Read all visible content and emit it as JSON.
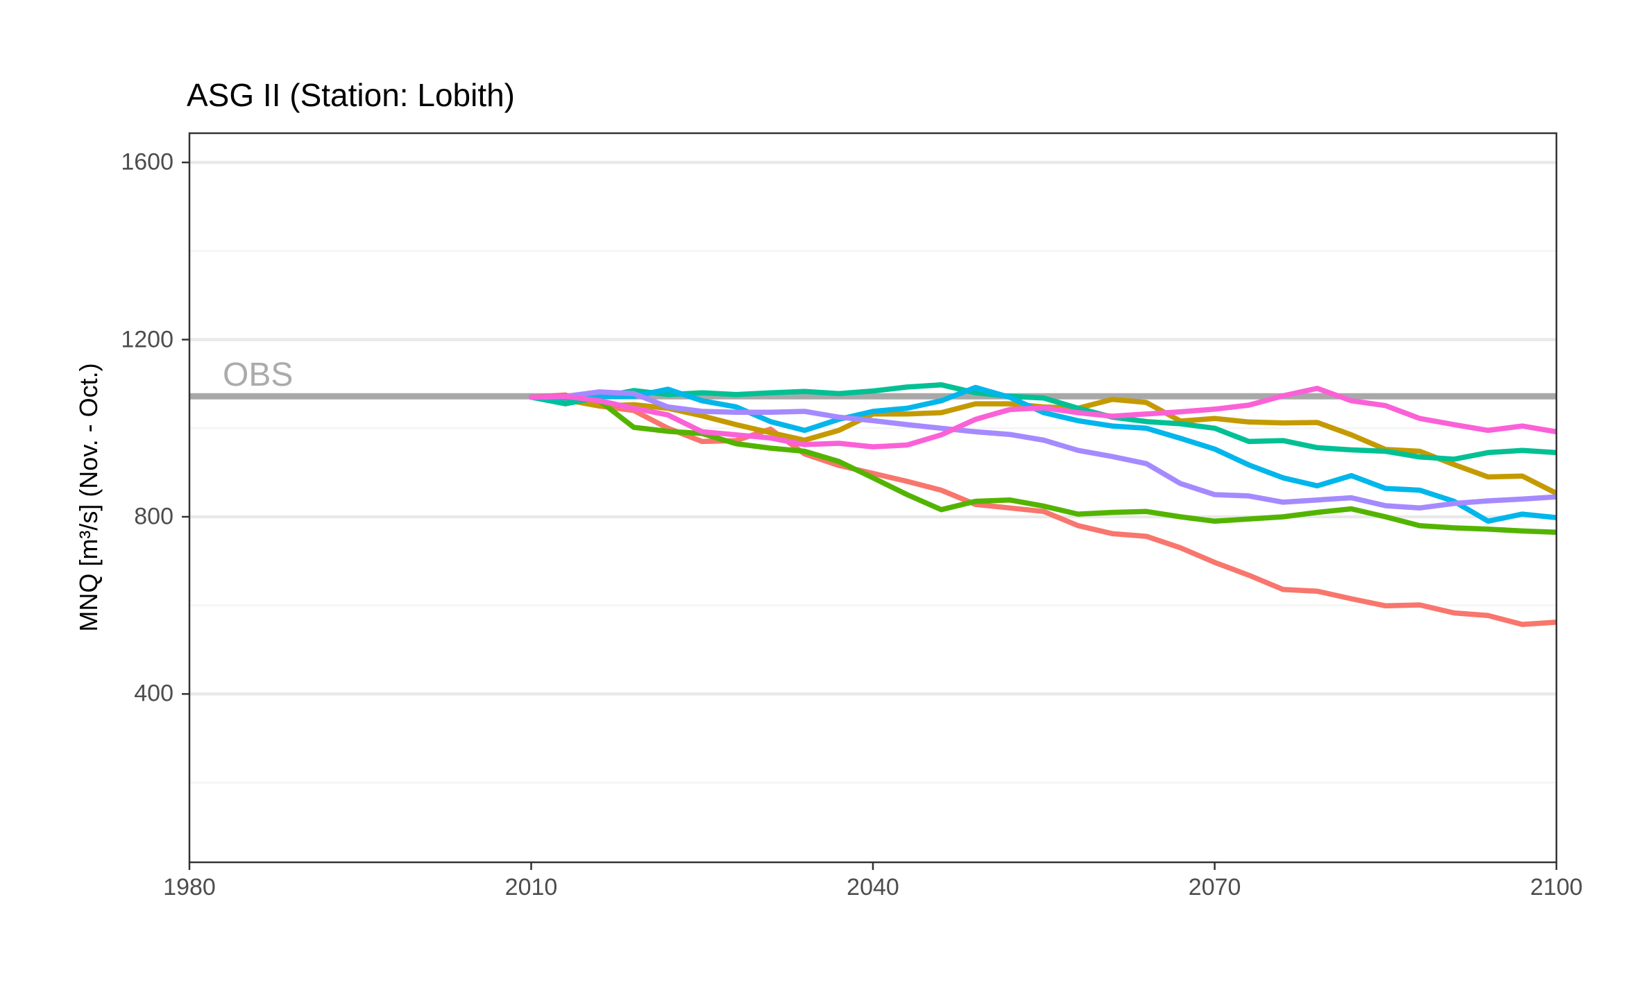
{
  "title": "ASG II (Station: Lobith)",
  "y_axis": {
    "title": "MNQ [m³/s] (Nov. - Oct.)",
    "ticks": [
      {
        "label": "400",
        "value": 400
      },
      {
        "label": "800",
        "value": 800
      },
      {
        "label": "1200",
        "value": 1200
      },
      {
        "label": "1600",
        "value": 1600
      }
    ]
  },
  "x_axis": {
    "ticks": [
      {
        "label": "1980",
        "value": 1980
      },
      {
        "label": "2010",
        "value": 2010
      },
      {
        "label": "2040",
        "value": 2040
      },
      {
        "label": "2070",
        "value": 2070
      },
      {
        "label": "2100",
        "value": 2100
      }
    ]
  },
  "chart_data": {
    "type": "line",
    "title": "ASG II (Station: Lobith)",
    "xlabel": "",
    "ylabel": "MNQ [m³/s] (Nov. - Oct.)",
    "xlim": [
      1980,
      2100
    ],
    "ylim": [
      20,
      1666
    ],
    "grid": "horizontal-only",
    "legend_position": "none",
    "gridlines": {
      "major": [
        400,
        800,
        1200,
        1600
      ],
      "minor": [
        200,
        600,
        1000,
        1400
      ]
    },
    "reference_line": {
      "label": "OBS",
      "value": 1072,
      "color": "#a8a8a8",
      "x_start": 1980,
      "x_end": 2100
    },
    "x": [
      2010,
      2013,
      2016,
      2019,
      2022,
      2025,
      2028,
      2031,
      2034,
      2037,
      2040,
      2043,
      2046,
      2049,
      2052,
      2055,
      2058,
      2061,
      2064,
      2067,
      2070,
      2073,
      2076,
      2079,
      2082,
      2085,
      2088,
      2091,
      2094,
      2097,
      2100
    ],
    "series": [
      {
        "name": "salmon",
        "color": "#F8766D",
        "values": [
          1070,
          1075,
          1050,
          1040,
          1000,
          970,
          972,
          998,
          942,
          916,
          898,
          880,
          860,
          828,
          820,
          812,
          780,
          762,
          756,
          730,
          697,
          668,
          636,
          632,
          615,
          599,
          601,
          583,
          577,
          557,
          562
        ]
      },
      {
        "name": "olive",
        "color": "#C49A00",
        "values": [
          1070,
          1064,
          1050,
          1053,
          1045,
          1028,
          1008,
          990,
          973,
          995,
          1032,
          1032,
          1035,
          1055,
          1055,
          1048,
          1045,
          1065,
          1058,
          1016,
          1022,
          1014,
          1012,
          1013,
          985,
          952,
          948,
          918,
          890,
          892,
          853
        ]
      },
      {
        "name": "green",
        "color": "#53B400",
        "values": [
          1070,
          1073,
          1062,
          1002,
          993,
          988,
          965,
          955,
          948,
          925,
          888,
          850,
          816,
          835,
          838,
          824,
          806,
          810,
          812,
          800,
          790,
          795,
          800,
          810,
          818,
          800,
          780,
          775,
          772,
          768,
          765
        ]
      },
      {
        "name": "teal",
        "color": "#00C094",
        "values": [
          1070,
          1055,
          1070,
          1085,
          1076,
          1080,
          1076,
          1080,
          1083,
          1078,
          1084,
          1093,
          1098,
          1080,
          1072,
          1068,
          1045,
          1025,
          1015,
          1010,
          1000,
          970,
          972,
          956,
          951,
          948,
          935,
          930,
          945,
          950,
          945
        ]
      },
      {
        "name": "cyan",
        "color": "#00B6EB",
        "values": [
          1070,
          1068,
          1072,
          1072,
          1088,
          1062,
          1048,
          1015,
          995,
          1020,
          1038,
          1045,
          1062,
          1092,
          1070,
          1035,
          1017,
          1005,
          1000,
          977,
          953,
          917,
          888,
          870,
          893,
          864,
          860,
          835,
          790,
          806,
          798
        ]
      },
      {
        "name": "purple",
        "color": "#A58AFF",
        "values": [
          1070,
          1072,
          1082,
          1078,
          1048,
          1038,
          1036,
          1036,
          1038,
          1025,
          1017,
          1008,
          1000,
          992,
          986,
          973,
          950,
          936,
          920,
          875,
          850,
          847,
          833,
          838,
          843,
          825,
          820,
          830,
          836,
          840,
          845
        ]
      },
      {
        "name": "pink",
        "color": "#FB61D7",
        "values": [
          1070,
          1072,
          1062,
          1045,
          1030,
          992,
          985,
          978,
          963,
          966,
          958,
          962,
          985,
          1020,
          1042,
          1046,
          1035,
          1027,
          1032,
          1037,
          1043,
          1052,
          1073,
          1090,
          1062,
          1051,
          1022,
          1008,
          995,
          1005,
          992
        ]
      }
    ]
  }
}
